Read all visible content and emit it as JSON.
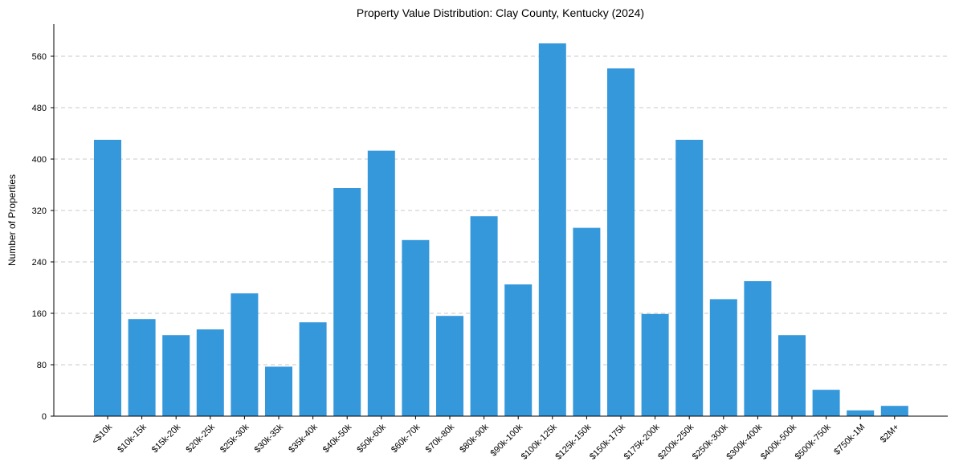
{
  "chart_data": {
    "type": "bar",
    "title": "Property Value Distribution: Clay County, Kentucky (2024)",
    "xlabel": "",
    "ylabel": "Number of Properties",
    "ylim": [
      0,
      610
    ],
    "yticks": [
      0,
      80,
      160,
      240,
      320,
      400,
      480,
      560
    ],
    "grid": "y-dashed",
    "legend": "none",
    "bar_color": "#3498db",
    "categories": [
      "<$10k",
      "$10k-15k",
      "$15k-20k",
      "$20k-25k",
      "$25k-30k",
      "$30k-35k",
      "$35k-40k",
      "$40k-50k",
      "$50k-60k",
      "$60k-70k",
      "$70k-80k",
      "$80k-90k",
      "$90k-100k",
      "$100k-125k",
      "$125k-150k",
      "$150k-175k",
      "$175k-200k",
      "$200k-250k",
      "$250k-300k",
      "$300k-400k",
      "$400k-500k",
      "$500k-750k",
      "$750k-1M",
      "$2M+"
    ],
    "values": [
      430,
      151,
      126,
      135,
      191,
      77,
      146,
      355,
      413,
      274,
      156,
      311,
      205,
      580,
      293,
      541,
      159,
      430,
      182,
      210,
      126,
      41,
      9,
      16
    ]
  }
}
